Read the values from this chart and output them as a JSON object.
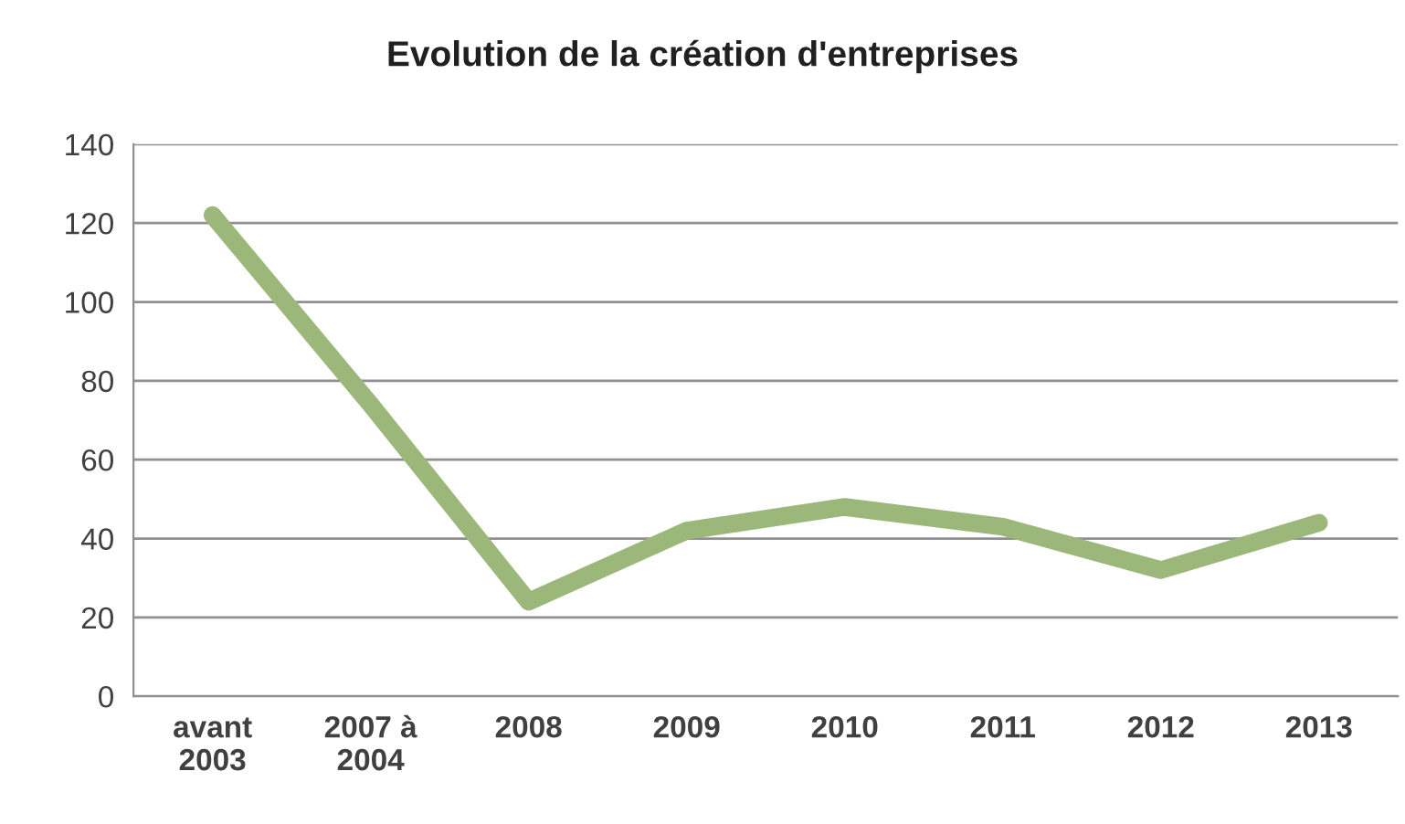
{
  "chart_data": {
    "type": "line",
    "title": "Evolution de la création d'entreprises",
    "categories": [
      "avant\n2003",
      "2007 à\n2004",
      "2008",
      "2009",
      "2010",
      "2011",
      "2012",
      "2013"
    ],
    "series": [
      {
        "color": "#9bb87a",
        "values": [
          122,
          74,
          24,
          42,
          48,
          43,
          32,
          44
        ]
      }
    ],
    "ylim": [
      0,
      140
    ],
    "yticks": [
      0,
      20,
      40,
      60,
      80,
      100,
      120,
      140
    ],
    "grid": "y",
    "legend": false,
    "marker": "none",
    "line_style": "solid"
  }
}
